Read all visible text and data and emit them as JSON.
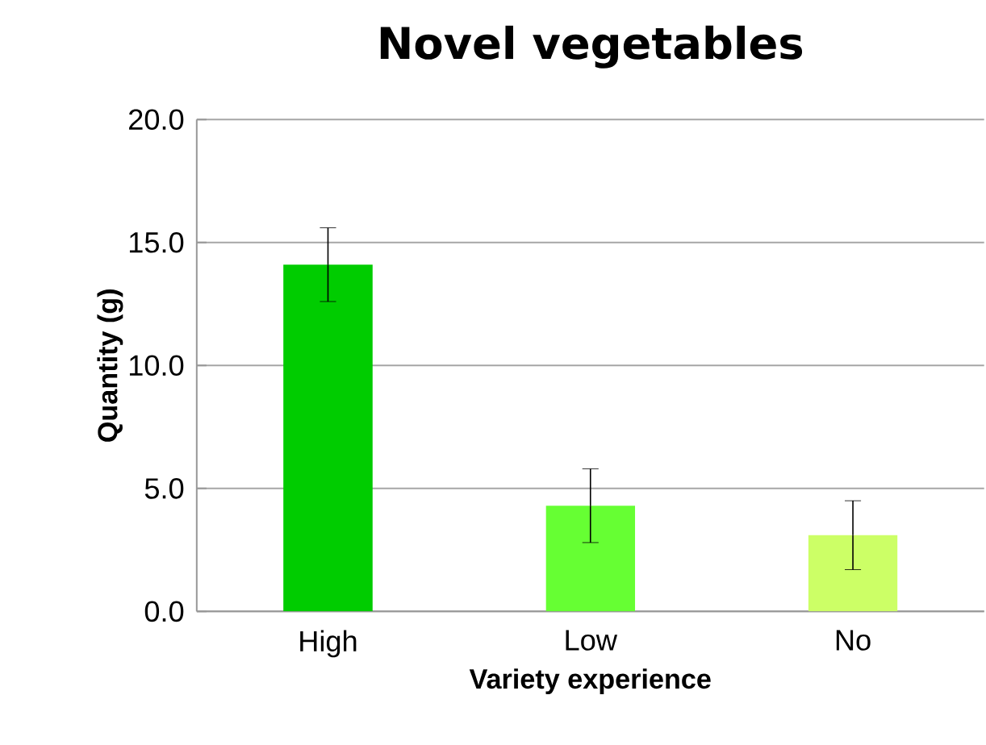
{
  "chart_data": {
    "type": "bar",
    "title": "Novel vegetables",
    "xlabel": "Variety experience",
    "ylabel": "Quantity (g)",
    "categories": [
      "High",
      "Low",
      "No"
    ],
    "values": [
      14.1,
      4.3,
      3.1
    ],
    "colors": [
      "#00cc00",
      "#66ff33",
      "#ccff66"
    ],
    "errors": [
      1.5,
      1.5,
      1.4
    ],
    "ylim": [
      0,
      20
    ],
    "yticks": [
      {
        "value": 0,
        "label": "0.0"
      },
      {
        "value": 5,
        "label": "5.0"
      },
      {
        "value": 10,
        "label": "10.0"
      },
      {
        "value": 15,
        "label": "15.0"
      },
      {
        "value": 20,
        "label": "20.0"
      }
    ],
    "grid": "y"
  }
}
